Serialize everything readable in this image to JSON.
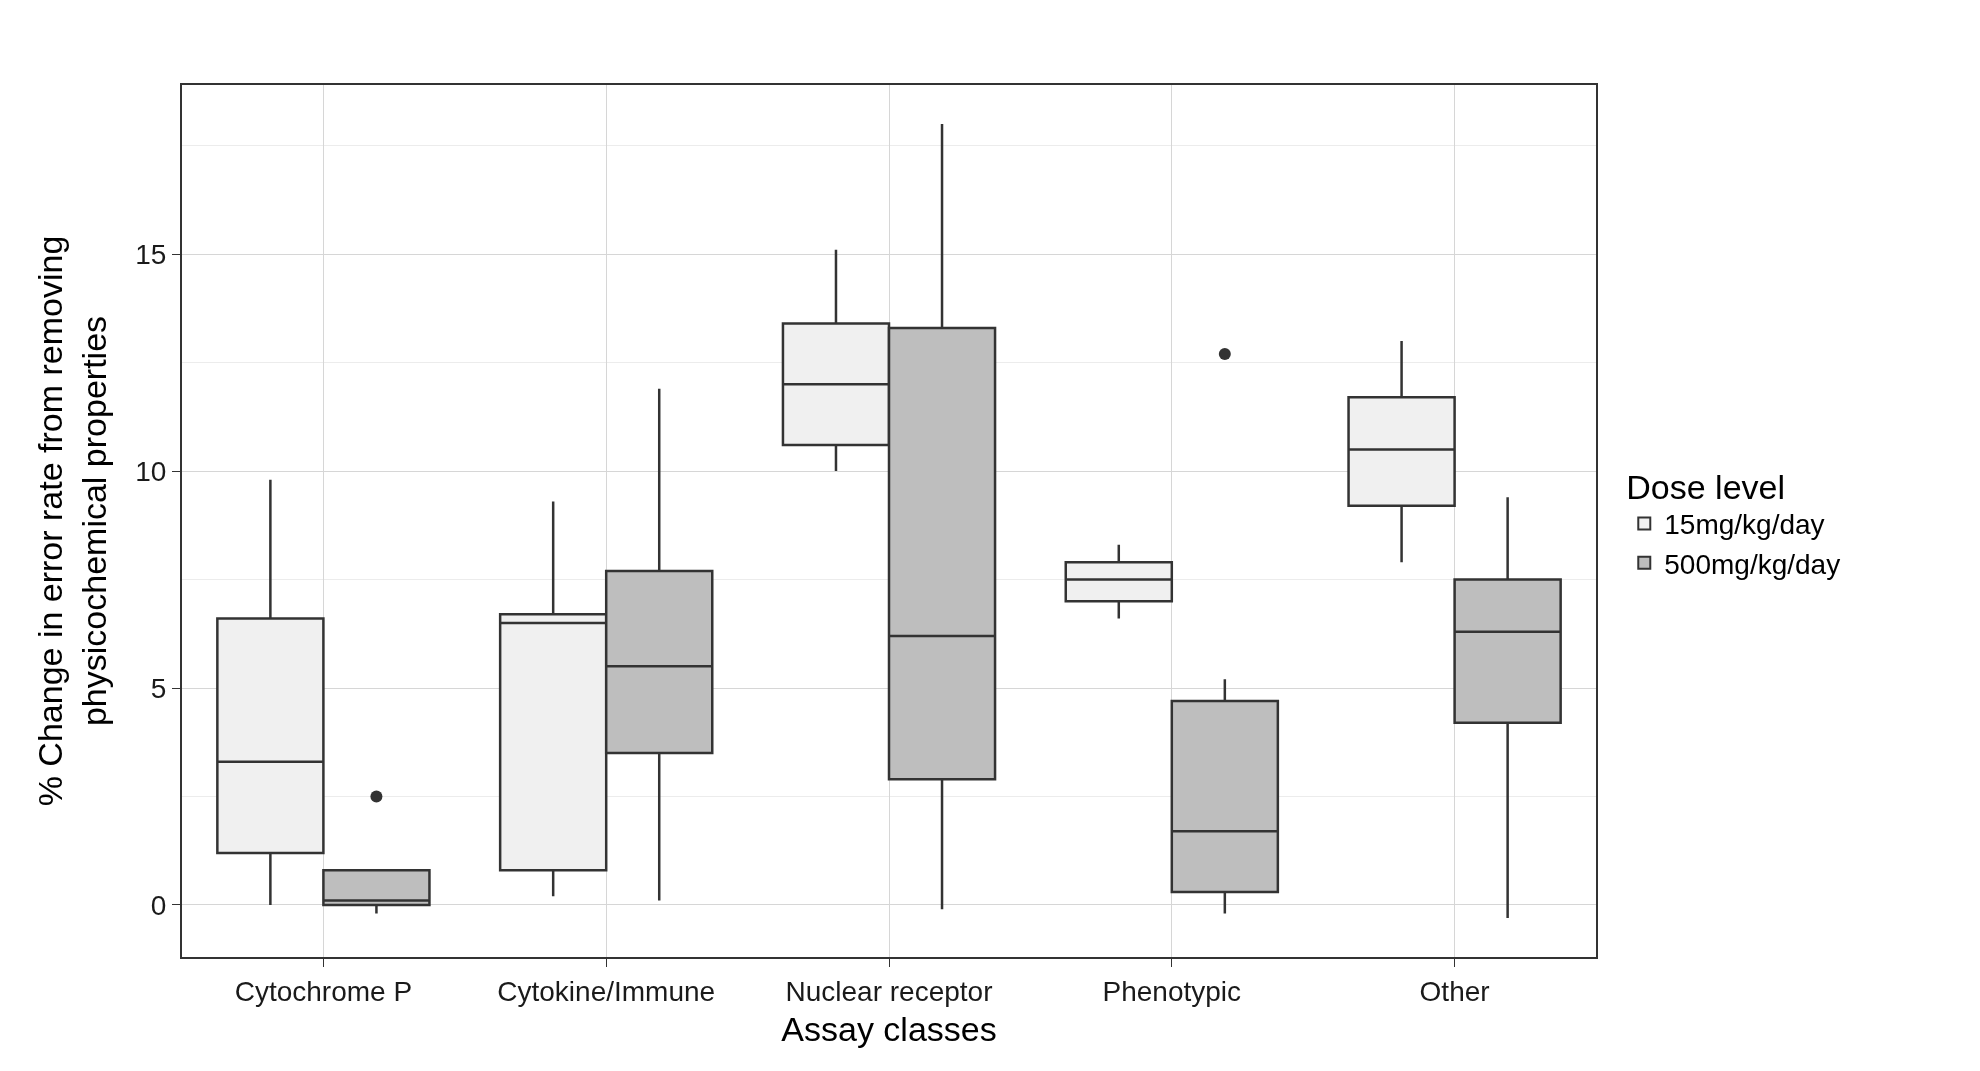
{
  "chart_data": {
    "type": "box",
    "xlabel": "Assay classes",
    "ylabel": "% Change in error rate from removing\nphysicochemical properties",
    "legend_title": "Dose level",
    "categories": [
      "Cytochrome P",
      "Cytokine/Immune",
      "Nuclear receptor",
      "Phenotypic",
      "Other"
    ],
    "ylim": [
      -1.2,
      18.9
    ],
    "yticks": [
      0,
      5,
      10,
      15
    ],
    "grid": true,
    "legend": "right",
    "series": [
      {
        "name": "15mg/kg/day",
        "color": "#f0f0f0",
        "boxes": [
          {
            "low": 0,
            "q1": 1.2,
            "median": 3.3,
            "q3": 6.6,
            "high": 9.8
          },
          {
            "low": 0.2,
            "q1": 0.8,
            "median": 6.5,
            "q3": 6.7,
            "high": 9.3
          },
          {
            "low": 10,
            "q1": 10.6,
            "median": 12,
            "q3": 13.4,
            "high": 15.1
          },
          {
            "low": 6.6,
            "q1": 7,
            "median": 7.5,
            "q3": 7.9,
            "high": 8.3
          },
          {
            "low": 7.9,
            "q1": 9.2,
            "median": 10.5,
            "q3": 11.7,
            "high": 13
          }
        ]
      },
      {
        "name": "500mg/kg/day",
        "color": "#bebebe",
        "boxes": [
          {
            "low": -0.2,
            "q1": 0,
            "median": 0.1,
            "q3": 0.8,
            "high": 0.8,
            "outliers": [
              2.5
            ]
          },
          {
            "low": 0.1,
            "q1": 3.5,
            "median": 5.5,
            "q3": 7.7,
            "high": 11.9
          },
          {
            "low": -0.1,
            "q1": 2.9,
            "median": 6.2,
            "q3": 13.3,
            "high": 18
          },
          {
            "low": -0.2,
            "q1": 0.3,
            "median": 1.7,
            "q3": 4.7,
            "high": 5.2,
            "outliers": [
              12.7
            ]
          },
          {
            "low": -0.3,
            "q1": 4.2,
            "median": 6.3,
            "q3": 7.5,
            "high": 9.4
          }
        ]
      }
    ]
  }
}
